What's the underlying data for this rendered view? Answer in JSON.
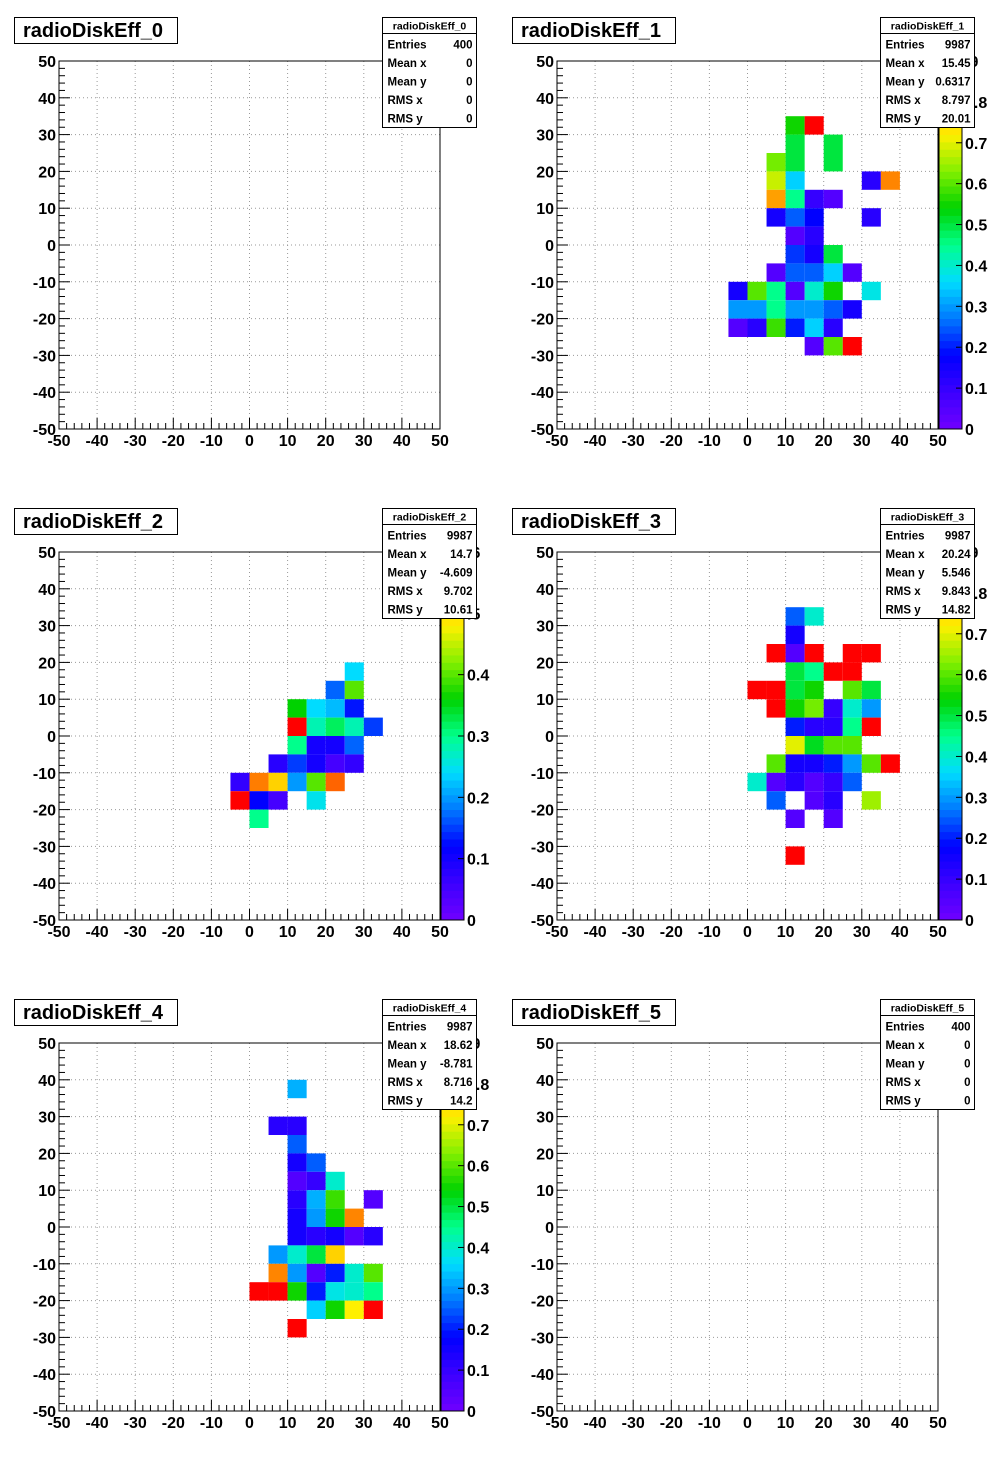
{
  "footer_text": "",
  "chart_data": [
    {
      "type": "heatmap",
      "title": "radioDiskEff_0",
      "xlim": [
        -50,
        50
      ],
      "ylim": [
        -50,
        50
      ],
      "x_ticks": [
        "-50",
        "-40",
        "-30",
        "-20",
        "-10",
        "0",
        "10",
        "20",
        "30",
        "40",
        "50"
      ],
      "y_ticks": [
        "-50",
        "-40",
        "-30",
        "-20",
        "-10",
        "0",
        "10",
        "20",
        "30",
        "40",
        "50"
      ],
      "grid": true,
      "stats": {
        "name": "radioDiskEff_0",
        "rows": [
          [
            "Entries",
            "400"
          ],
          [
            "Mean x",
            "0"
          ],
          [
            "Mean y",
            "0"
          ],
          [
            "RMS x",
            "0"
          ],
          [
            "RMS y",
            "0"
          ]
        ]
      },
      "palette": null,
      "cells": []
    },
    {
      "type": "heatmap",
      "title": "radioDiskEff_1",
      "xlim": [
        -50,
        50
      ],
      "ylim": [
        -50,
        50
      ],
      "x_ticks": [
        "-50",
        "-40",
        "-30",
        "-20",
        "-10",
        "0",
        "10",
        "20",
        "30",
        "40",
        "50"
      ],
      "y_ticks": [
        "-50",
        "-40",
        "-30",
        "-20",
        "-10",
        "0",
        "10",
        "20",
        "30",
        "40",
        "50"
      ],
      "grid": true,
      "stats": {
        "name": "radioDiskEff_1",
        "rows": [
          [
            "Entries",
            "9987"
          ],
          [
            "Mean x",
            "15.45"
          ],
          [
            "Mean y",
            "0.6317"
          ],
          [
            "RMS x",
            "8.797"
          ],
          [
            "RMS y",
            "20.01"
          ]
        ]
      },
      "palette": {
        "min": 0,
        "max": 0.9,
        "labels": [
          "0",
          "0.1",
          "0.2",
          "0.3",
          "0.4",
          "0.5",
          "0.6",
          "0.7",
          "0.8",
          ".9"
        ]
      },
      "cells": [
        [
          12.5,
          32.5,
          0.55
        ],
        [
          17.5,
          32.5,
          0.9
        ],
        [
          12.5,
          27.5,
          0.5
        ],
        [
          22.5,
          27.5,
          0.5
        ],
        [
          7.5,
          22.5,
          0.62
        ],
        [
          12.5,
          22.5,
          0.5
        ],
        [
          22.5,
          22.5,
          0.5
        ],
        [
          7.5,
          17.5,
          0.68
        ],
        [
          12.5,
          17.5,
          0.35
        ],
        [
          32.5,
          17.5,
          0.12
        ],
        [
          37.5,
          17.5,
          0.82
        ],
        [
          7.5,
          12.5,
          0.8
        ],
        [
          12.5,
          12.5,
          0.45
        ],
        [
          17.5,
          12.5,
          0.1
        ],
        [
          22.5,
          12.5,
          0.05
        ],
        [
          7.5,
          7.5,
          0.15
        ],
        [
          12.5,
          7.5,
          0.25
        ],
        [
          17.5,
          7.5,
          0.18
        ],
        [
          32.5,
          7.5,
          0.12
        ],
        [
          12.5,
          2.5,
          0.05
        ],
        [
          17.5,
          2.5,
          0.12
        ],
        [
          12.5,
          -2.5,
          0.22
        ],
        [
          17.5,
          -2.5,
          0.15
        ],
        [
          22.5,
          -2.5,
          0.5
        ],
        [
          7.5,
          -7.5,
          0.05
        ],
        [
          12.5,
          -7.5,
          0.25
        ],
        [
          17.5,
          -7.5,
          0.25
        ],
        [
          22.5,
          -7.5,
          0.35
        ],
        [
          27.5,
          -7.5,
          0.05
        ],
        [
          -2.5,
          -12.5,
          0.15
        ],
        [
          2.5,
          -12.5,
          0.6
        ],
        [
          7.5,
          -12.5,
          0.45
        ],
        [
          12.5,
          -12.5,
          0.05
        ],
        [
          17.5,
          -12.5,
          0.4
        ],
        [
          22.5,
          -12.5,
          0.55
        ],
        [
          32.5,
          -12.5,
          0.38
        ],
        [
          -2.5,
          -17.5,
          0.3
        ],
        [
          2.5,
          -17.5,
          0.3
        ],
        [
          7.5,
          -17.5,
          0.45
        ],
        [
          12.5,
          -17.5,
          0.3
        ],
        [
          17.5,
          -17.5,
          0.3
        ],
        [
          22.5,
          -17.5,
          0.25
        ],
        [
          27.5,
          -17.5,
          0.15
        ],
        [
          -2.5,
          -22.5,
          0.05
        ],
        [
          2.5,
          -22.5,
          0.12
        ],
        [
          7.5,
          -22.5,
          0.58
        ],
        [
          12.5,
          -22.5,
          0.2
        ],
        [
          17.5,
          -22.5,
          0.35
        ],
        [
          22.5,
          -22.5,
          0.12
        ],
        [
          17.5,
          -27.5,
          0.05
        ],
        [
          22.5,
          -27.5,
          0.6
        ],
        [
          27.5,
          -27.5,
          0.9
        ]
      ]
    },
    {
      "type": "heatmap",
      "title": "radioDiskEff_2",
      "xlim": [
        -50,
        50
      ],
      "ylim": [
        -50,
        50
      ],
      "x_ticks": [
        "-50",
        "-40",
        "-30",
        "-20",
        "-10",
        "0",
        "10",
        "20",
        "30",
        "40",
        "50"
      ],
      "y_ticks": [
        "-50",
        "-40",
        "-30",
        "-20",
        "-10",
        "0",
        "10",
        "20",
        "30",
        "40",
        "50"
      ],
      "grid": true,
      "stats": {
        "name": "radioDiskEff_2",
        "rows": [
          [
            "Entries",
            "9987"
          ],
          [
            "Mean x",
            "14.7"
          ],
          [
            "Mean y",
            "-4.609"
          ],
          [
            "RMS x",
            "9.702"
          ],
          [
            "RMS y",
            "10.61"
          ]
        ]
      },
      "palette": {
        "min": 0,
        "max": 0.6,
        "labels": [
          "0",
          "0.1",
          "0.2",
          "0.3",
          "0.4",
          ".5",
          ".6"
        ]
      },
      "cells": [
        [
          27.5,
          17.5,
          0.24
        ],
        [
          22.5,
          12.5,
          0.17
        ],
        [
          27.5,
          12.5,
          0.4
        ],
        [
          12.5,
          7.5,
          0.36
        ],
        [
          17.5,
          7.5,
          0.24
        ],
        [
          22.5,
          7.5,
          0.22
        ],
        [
          27.5,
          7.5,
          0.13
        ],
        [
          12.5,
          2.5,
          0.6
        ],
        [
          17.5,
          2.5,
          0.28
        ],
        [
          22.5,
          2.5,
          0.32
        ],
        [
          27.5,
          2.5,
          0.28
        ],
        [
          32.5,
          2.5,
          0.15
        ],
        [
          12.5,
          -2.5,
          0.3
        ],
        [
          17.5,
          -2.5,
          0.1
        ],
        [
          22.5,
          -2.5,
          0.1
        ],
        [
          27.5,
          -2.5,
          0.17
        ],
        [
          7.5,
          -7.5,
          0.08
        ],
        [
          12.5,
          -7.5,
          0.15
        ],
        [
          17.5,
          -7.5,
          0.1
        ],
        [
          22.5,
          -7.5,
          0.05
        ],
        [
          27.5,
          -7.5,
          0.07
        ],
        [
          -2.5,
          -12.5,
          0.07
        ],
        [
          2.5,
          -12.5,
          0.55
        ],
        [
          7.5,
          -12.5,
          0.5
        ],
        [
          12.5,
          -12.5,
          0.2
        ],
        [
          17.5,
          -12.5,
          0.4
        ],
        [
          22.5,
          -12.5,
          0.56
        ],
        [
          -2.5,
          -17.5,
          0.6
        ],
        [
          2.5,
          -17.5,
          0.12
        ],
        [
          7.5,
          -17.5,
          0.05
        ],
        [
          17.5,
          -17.5,
          0.25
        ],
        [
          2.5,
          -22.5,
          0.3
        ]
      ]
    },
    {
      "type": "heatmap",
      "title": "radioDiskEff_3",
      "xlim": [
        -50,
        50
      ],
      "ylim": [
        -50,
        50
      ],
      "x_ticks": [
        "-50",
        "-40",
        "-30",
        "-20",
        "-10",
        "0",
        "10",
        "20",
        "30",
        "40",
        "50"
      ],
      "y_ticks": [
        "-50",
        "-40",
        "-30",
        "-20",
        "-10",
        "0",
        "10",
        "20",
        "30",
        "40",
        "50"
      ],
      "grid": true,
      "stats": {
        "name": "radioDiskEff_3",
        "rows": [
          [
            "Entries",
            "9987"
          ],
          [
            "Mean x",
            "20.24"
          ],
          [
            "Mean y",
            "5.546"
          ],
          [
            "RMS x",
            "9.843"
          ],
          [
            "RMS y",
            "14.82"
          ]
        ]
      },
      "palette": {
        "min": 0,
        "max": 0.9,
        "labels": [
          "0",
          "0.1",
          "0.2",
          "0.3",
          "0.4",
          "0.5",
          "0.6",
          "0.7",
          "0.8",
          ".9"
        ]
      },
      "cells": [
        [
          12.5,
          32.5,
          0.25
        ],
        [
          17.5,
          32.5,
          0.4
        ],
        [
          12.5,
          27.5,
          0.15
        ],
        [
          7.5,
          22.5,
          0.9
        ],
        [
          12.5,
          22.5,
          0.05
        ],
        [
          17.5,
          22.5,
          0.9
        ],
        [
          27.5,
          22.5,
          0.9
        ],
        [
          32.5,
          22.5,
          0.9
        ],
        [
          12.5,
          17.5,
          0.5
        ],
        [
          17.5,
          17.5,
          0.45
        ],
        [
          22.5,
          17.5,
          0.9
        ],
        [
          27.5,
          17.5,
          0.9
        ],
        [
          2.5,
          12.5,
          0.9
        ],
        [
          7.5,
          12.5,
          0.9
        ],
        [
          12.5,
          12.5,
          0.5
        ],
        [
          17.5,
          12.5,
          0.55
        ],
        [
          27.5,
          12.5,
          0.6
        ],
        [
          32.5,
          12.5,
          0.5
        ],
        [
          7.5,
          7.5,
          0.9
        ],
        [
          12.5,
          7.5,
          0.55
        ],
        [
          17.5,
          7.5,
          0.62
        ],
        [
          22.5,
          7.5,
          0.1
        ],
        [
          27.5,
          7.5,
          0.4
        ],
        [
          32.5,
          7.5,
          0.3
        ],
        [
          12.5,
          2.5,
          0.2
        ],
        [
          17.5,
          2.5,
          0.12
        ],
        [
          22.5,
          2.5,
          0.12
        ],
        [
          27.5,
          2.5,
          0.45
        ],
        [
          32.5,
          2.5,
          0.9
        ],
        [
          12.5,
          -2.5,
          0.7
        ],
        [
          17.5,
          -2.5,
          0.52
        ],
        [
          22.5,
          -2.5,
          0.6
        ],
        [
          27.5,
          -2.5,
          0.6
        ],
        [
          7.5,
          -7.5,
          0.6
        ],
        [
          12.5,
          -7.5,
          0.15
        ],
        [
          17.5,
          -7.5,
          0.15
        ],
        [
          22.5,
          -7.5,
          0.2
        ],
        [
          27.5,
          -7.5,
          0.3
        ],
        [
          32.5,
          -7.5,
          0.6
        ],
        [
          37.5,
          -7.5,
          0.9
        ],
        [
          2.5,
          -12.5,
          0.4
        ],
        [
          7.5,
          -12.5,
          0.05
        ],
        [
          12.5,
          -12.5,
          0.12
        ],
        [
          17.5,
          -12.5,
          0.05
        ],
        [
          22.5,
          -12.5,
          0.1
        ],
        [
          27.5,
          -12.5,
          0.25
        ],
        [
          7.5,
          -17.5,
          0.25
        ],
        [
          17.5,
          -17.5,
          0.05
        ],
        [
          22.5,
          -17.5,
          0.12
        ],
        [
          32.5,
          -17.5,
          0.65
        ],
        [
          12.5,
          -22.5,
          0.05
        ],
        [
          22.5,
          -22.5,
          0.05
        ],
        [
          12.5,
          -32.5,
          0.9
        ]
      ]
    },
    {
      "type": "heatmap",
      "title": "radioDiskEff_4",
      "xlim": [
        -50,
        50
      ],
      "ylim": [
        -50,
        50
      ],
      "x_ticks": [
        "-50",
        "-40",
        "-30",
        "-20",
        "-10",
        "0",
        "10",
        "20",
        "30",
        "40",
        "50"
      ],
      "y_ticks": [
        "-50",
        "-40",
        "-30",
        "-20",
        "-10",
        "0",
        "10",
        "20",
        "30",
        "40",
        "50"
      ],
      "grid": true,
      "stats": {
        "name": "radioDiskEff_4",
        "rows": [
          [
            "Entries",
            "9987"
          ],
          [
            "Mean x",
            "18.62"
          ],
          [
            "Mean y",
            "-8.781"
          ],
          [
            "RMS x",
            "8.716"
          ],
          [
            "RMS y",
            "14.2"
          ]
        ]
      },
      "palette": {
        "min": 0,
        "max": 0.9,
        "labels": [
          "0",
          "0.1",
          "0.2",
          "0.3",
          "0.4",
          "0.5",
          "0.6",
          "0.7",
          "0.8",
          ".9"
        ]
      },
      "cells": [
        [
          12.5,
          37.5,
          0.32
        ],
        [
          7.5,
          27.5,
          0.12
        ],
        [
          12.5,
          27.5,
          0.12
        ],
        [
          12.5,
          22.5,
          0.25
        ],
        [
          12.5,
          17.5,
          0.15
        ],
        [
          17.5,
          17.5,
          0.25
        ],
        [
          12.5,
          12.5,
          0.05
        ],
        [
          17.5,
          12.5,
          0.1
        ],
        [
          22.5,
          12.5,
          0.4
        ],
        [
          12.5,
          7.5,
          0.12
        ],
        [
          17.5,
          7.5,
          0.32
        ],
        [
          22.5,
          7.5,
          0.58
        ],
        [
          32.5,
          7.5,
          0.05
        ],
        [
          12.5,
          2.5,
          0.15
        ],
        [
          17.5,
          2.5,
          0.3
        ],
        [
          22.5,
          2.5,
          0.55
        ],
        [
          27.5,
          2.5,
          0.82
        ],
        [
          12.5,
          -2.5,
          0.15
        ],
        [
          17.5,
          -2.5,
          0.12
        ],
        [
          22.5,
          -2.5,
          0.15
        ],
        [
          27.5,
          -2.5,
          0.05
        ],
        [
          32.5,
          -2.5,
          0.12
        ],
        [
          7.5,
          -7.5,
          0.3
        ],
        [
          12.5,
          -7.5,
          0.4
        ],
        [
          17.5,
          -7.5,
          0.5
        ],
        [
          22.5,
          -7.5,
          0.75
        ],
        [
          7.5,
          -12.5,
          0.82
        ],
        [
          12.5,
          -12.5,
          0.3
        ],
        [
          17.5,
          -12.5,
          0.05
        ],
        [
          22.5,
          -12.5,
          0.2
        ],
        [
          27.5,
          -12.5,
          0.4
        ],
        [
          32.5,
          -12.5,
          0.6
        ],
        [
          2.5,
          -17.5,
          0.9
        ],
        [
          7.5,
          -17.5,
          0.9
        ],
        [
          12.5,
          -17.5,
          0.55
        ],
        [
          17.5,
          -17.5,
          0.2
        ],
        [
          22.5,
          -17.5,
          0.38
        ],
        [
          27.5,
          -17.5,
          0.4
        ],
        [
          32.5,
          -17.5,
          0.45
        ],
        [
          17.5,
          -22.5,
          0.35
        ],
        [
          22.5,
          -22.5,
          0.55
        ],
        [
          27.5,
          -22.5,
          0.72
        ],
        [
          32.5,
          -22.5,
          0.9
        ],
        [
          12.5,
          -27.5,
          0.9
        ]
      ]
    },
    {
      "type": "heatmap",
      "title": "radioDiskEff_5",
      "xlim": [
        -50,
        50
      ],
      "ylim": [
        -50,
        50
      ],
      "x_ticks": [
        "-50",
        "-40",
        "-30",
        "-20",
        "-10",
        "0",
        "10",
        "20",
        "30",
        "40",
        "50"
      ],
      "y_ticks": [
        "-50",
        "-40",
        "-30",
        "-20",
        "-10",
        "0",
        "10",
        "20",
        "30",
        "40",
        "50"
      ],
      "grid": true,
      "stats": {
        "name": "radioDiskEff_5",
        "rows": [
          [
            "Entries",
            "400"
          ],
          [
            "Mean x",
            "0"
          ],
          [
            "Mean y",
            "0"
          ],
          [
            "RMS x",
            "0"
          ],
          [
            "RMS y",
            "0"
          ]
        ]
      },
      "palette": null,
      "cells": []
    }
  ]
}
